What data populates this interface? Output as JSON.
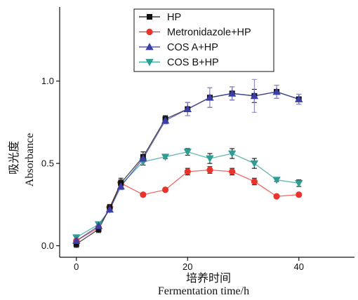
{
  "chart_data": {
    "type": "line",
    "title": "",
    "xlabel": {
      "zh": "培养时间",
      "en": "Fermentation time/h"
    },
    "ylabel": {
      "zh": "吸光度",
      "en": "Absorbance"
    },
    "xlim": [
      -3,
      50
    ],
    "ylim": [
      -0.07,
      1.45
    ],
    "xticks": {
      "values": [
        0,
        20,
        40
      ],
      "labels": [
        "0",
        "20",
        "40"
      ]
    },
    "yticks": {
      "values": [
        0.0,
        0.5,
        1.0
      ],
      "labels": [
        "0.0",
        "0.5",
        "1.0"
      ]
    },
    "grid": false,
    "legend_position": "top-center",
    "x": [
      0,
      4,
      6,
      8,
      12,
      16,
      20,
      24,
      28,
      32,
      36,
      40
    ],
    "series": [
      {
        "name": "HP",
        "marker": "square",
        "color": "#111111",
        "values": [
          0.01,
          0.1,
          0.23,
          0.38,
          0.54,
          0.77,
          0.83,
          0.9,
          0.925,
          0.91,
          0.935,
          0.89
        ],
        "errors": [
          0.02,
          0.02,
          0.02,
          0.03,
          0.03,
          0.02,
          0.04,
          0.06,
          0.04,
          0.04,
          0.04,
          0.03
        ]
      },
      {
        "name": "Metronidazole+HP",
        "marker": "circle",
        "color": "#e8342b",
        "values": [
          0.03,
          0.11,
          0.23,
          0.38,
          0.31,
          0.34,
          0.45,
          0.46,
          0.45,
          0.39,
          0.3,
          0.31
        ],
        "errors": [
          0.01,
          0.01,
          0.02,
          0.02,
          0.01,
          0.01,
          0.02,
          0.02,
          0.02,
          0.02,
          0.01,
          0.01
        ]
      },
      {
        "name": "COS A+HP",
        "marker": "triangle-up",
        "color": "#3b3fa6",
        "values": [
          0.03,
          0.12,
          0.22,
          0.36,
          0.53,
          0.76,
          0.83,
          0.9,
          0.925,
          0.91,
          0.935,
          0.89
        ],
        "errors": [
          0.01,
          0.01,
          0.01,
          0.02,
          0.02,
          0.02,
          0.04,
          0.06,
          0.04,
          0.1,
          0.04,
          0.03
        ]
      },
      {
        "name": "COS B+HP",
        "marker": "triangle-down",
        "color": "#2e9e94",
        "values": [
          0.05,
          0.13,
          0.22,
          0.37,
          0.51,
          0.54,
          0.57,
          0.53,
          0.56,
          0.5,
          0.4,
          0.38
        ],
        "errors": [
          0.01,
          0.01,
          0.01,
          0.02,
          0.02,
          0.01,
          0.02,
          0.03,
          0.03,
          0.03,
          0.01,
          0.02
        ]
      }
    ]
  }
}
